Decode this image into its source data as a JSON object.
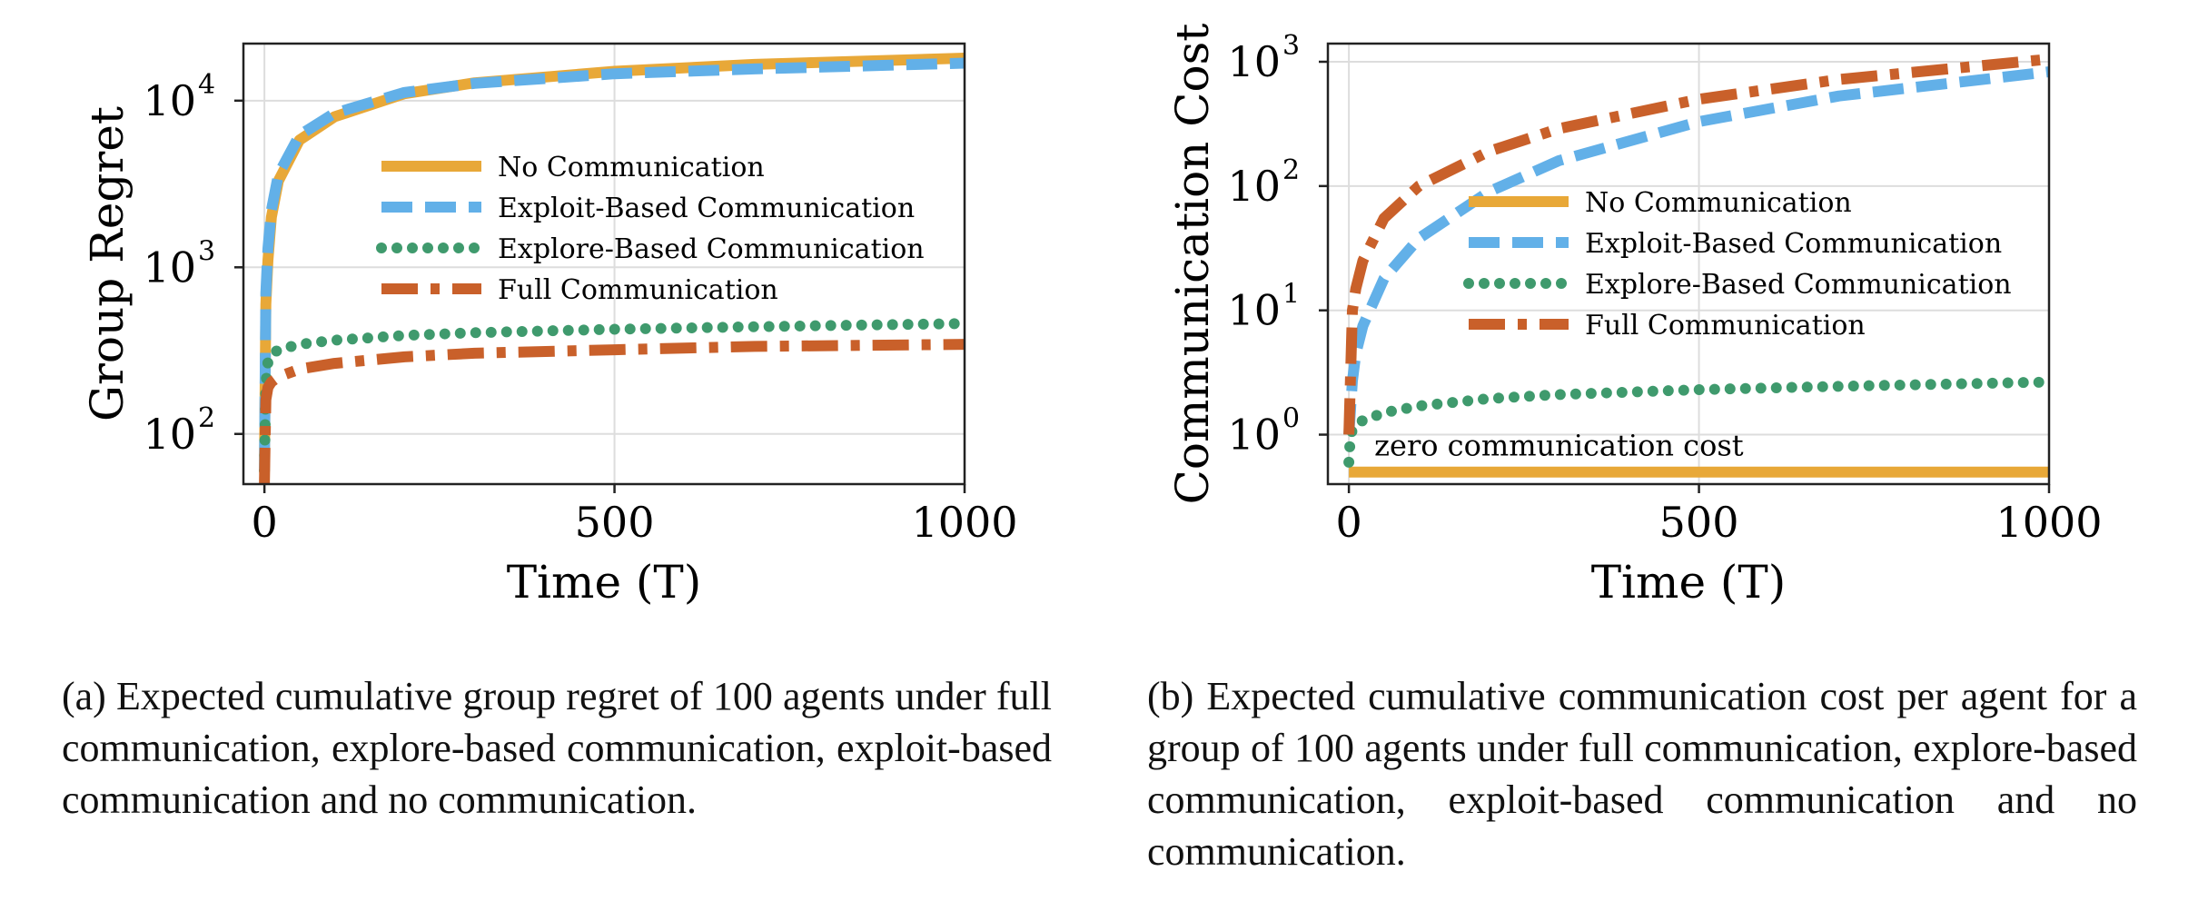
{
  "colors": {
    "none": "#E8A838",
    "exploit": "#62B0E8",
    "explore": "#3F9A6D",
    "full": "#C9602A",
    "grid": "#dddddd"
  },
  "chart_data": [
    {
      "type": "line",
      "panel": "a",
      "xlabel": "Time (T)",
      "ylabel": "Group Regret",
      "yscale": "log",
      "xlim": [
        -30,
        1000
      ],
      "ylim": [
        50,
        22000
      ],
      "xticks": [
        0,
        500,
        1000
      ],
      "xtick_labels": [
        "0",
        "500",
        "1000"
      ],
      "yticks": [
        100,
        1000,
        10000
      ],
      "ytick_labels": [
        "10",
        "10",
        "10"
      ],
      "ytick_exps": [
        "2",
        "3",
        "4"
      ],
      "grid": true,
      "legend_position": "center-right",
      "series": [
        {
          "name": "No Communication",
          "key": "none",
          "x": [
            0,
            2,
            5,
            10,
            20,
            50,
            100,
            200,
            300,
            500,
            700,
            1000
          ],
          "y": [
            60,
            600,
            1100,
            2000,
            3300,
            5800,
            8000,
            11000,
            12800,
            15000,
            16500,
            18000
          ]
        },
        {
          "name": "Exploit-Based Communication",
          "key": "exploit",
          "x": [
            0,
            2,
            5,
            10,
            20,
            50,
            100,
            200,
            300,
            500,
            700,
            1000
          ],
          "y": [
            60,
            700,
            1300,
            2200,
            3600,
            6200,
            8400,
            11200,
            12700,
            14500,
            15500,
            16800
          ]
        },
        {
          "name": "Explore-Based Communication",
          "key": "explore",
          "x": [
            0,
            2,
            5,
            10,
            20,
            50,
            100,
            200,
            300,
            500,
            700,
            1000
          ],
          "y": [
            60,
            200,
            270,
            300,
            320,
            345,
            365,
            390,
            405,
            425,
            440,
            460
          ]
        },
        {
          "name": "Full Communication",
          "key": "full",
          "x": [
            0,
            2,
            5,
            10,
            20,
            50,
            100,
            200,
            300,
            500,
            700,
            1000
          ],
          "y": [
            50,
            160,
            190,
            205,
            220,
            245,
            265,
            290,
            305,
            320,
            335,
            345
          ]
        }
      ]
    },
    {
      "type": "line",
      "panel": "b",
      "xlabel": "Time (T)",
      "ylabel": "Communication Cost",
      "yscale": "log",
      "xlim": [
        -30,
        1000
      ],
      "ylim": [
        0.4,
        1400
      ],
      "xticks": [
        0,
        500,
        1000
      ],
      "xtick_labels": [
        "0",
        "500",
        "1000"
      ],
      "yticks": [
        1,
        10,
        100,
        1000
      ],
      "ytick_labels": [
        "10",
        "10",
        "10",
        "10"
      ],
      "ytick_exps": [
        "0",
        "1",
        "2",
        "3"
      ],
      "grid": true,
      "legend_position": "center",
      "annotation": "zero communication cost",
      "series": [
        {
          "name": "No Communication",
          "key": "none",
          "x": [
            0,
            1000
          ],
          "y": [
            0.5,
            0.5
          ]
        },
        {
          "name": "Exploit-Based Communication",
          "key": "exploit",
          "x": [
            0,
            5,
            10,
            20,
            50,
            100,
            200,
            300,
            500,
            700,
            1000
          ],
          "y": [
            1.0,
            2.7,
            4.5,
            7.5,
            18,
            38,
            90,
            160,
            330,
            530,
            830
          ]
        },
        {
          "name": "Explore-Based Communication",
          "key": "explore",
          "x": [
            0,
            2,
            5,
            10,
            20,
            50,
            100,
            200,
            300,
            500,
            700,
            1000
          ],
          "y": [
            0.6,
            0.95,
            1.1,
            1.2,
            1.3,
            1.5,
            1.7,
            1.95,
            2.1,
            2.3,
            2.45,
            2.65
          ]
        },
        {
          "name": "Full Communication",
          "key": "full",
          "x": [
            0,
            5,
            10,
            20,
            50,
            100,
            200,
            300,
            500,
            700,
            1000
          ],
          "y": [
            1.0,
            10,
            15,
            25,
            55,
            100,
            190,
            290,
            500,
            720,
            1050
          ]
        }
      ]
    }
  ],
  "captions": {
    "a": "(a) Expected cumulative group regret of 100 agents under full communication, explore-based communication, exploit-based communication and no communication.",
    "b": "(b) Expected cumulative communication cost per agent for a group of 100 agents under full communication, explore-based communication, exploit-based communication and no communication."
  }
}
